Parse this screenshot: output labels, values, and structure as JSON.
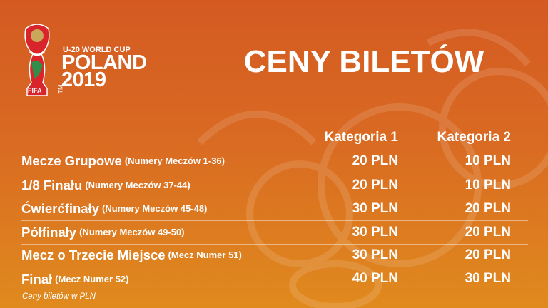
{
  "logo": {
    "line1": "U-20 WORLD CUP",
    "line2": "POLAND",
    "line3": "2019",
    "fifa": "FIFA",
    "tm": "TM"
  },
  "title": "CENY BILETÓW",
  "headers": [
    "Kategoria 1",
    "Kategoria 2"
  ],
  "rows": [
    {
      "name": "Mecze Grupowe",
      "sub": "(Numery Meczów 1-36)",
      "k1": "20 PLN",
      "k2": "10 PLN"
    },
    {
      "name": "1/8 Finału",
      "sub": "(Numery Meczów 37-44)",
      "k1": "20 PLN",
      "k2": "10 PLN"
    },
    {
      "name": "Ćwierćfinały",
      "sub": "(Numery Meczów 45-48)",
      "k1": "30 PLN",
      "k2": "20 PLN"
    },
    {
      "name": "Półfinały",
      "sub": "(Numery Meczów 49-50)",
      "k1": "30 PLN",
      "k2": "20 PLN"
    },
    {
      "name": "Mecz o Trzecie Miejsce",
      "sub": "(Mecz Numer 51)",
      "k1": "30 PLN",
      "k2": "20 PLN"
    },
    {
      "name": "Finał",
      "sub": "(Mecz Numer 52)",
      "k1": "40 PLN",
      "k2": "30 PLN"
    }
  ],
  "note": "Ceny biletów w PLN",
  "colors": {
    "bg_top": "#d45a22",
    "bg_bottom": "#e08a1e",
    "text": "#ffffff"
  }
}
